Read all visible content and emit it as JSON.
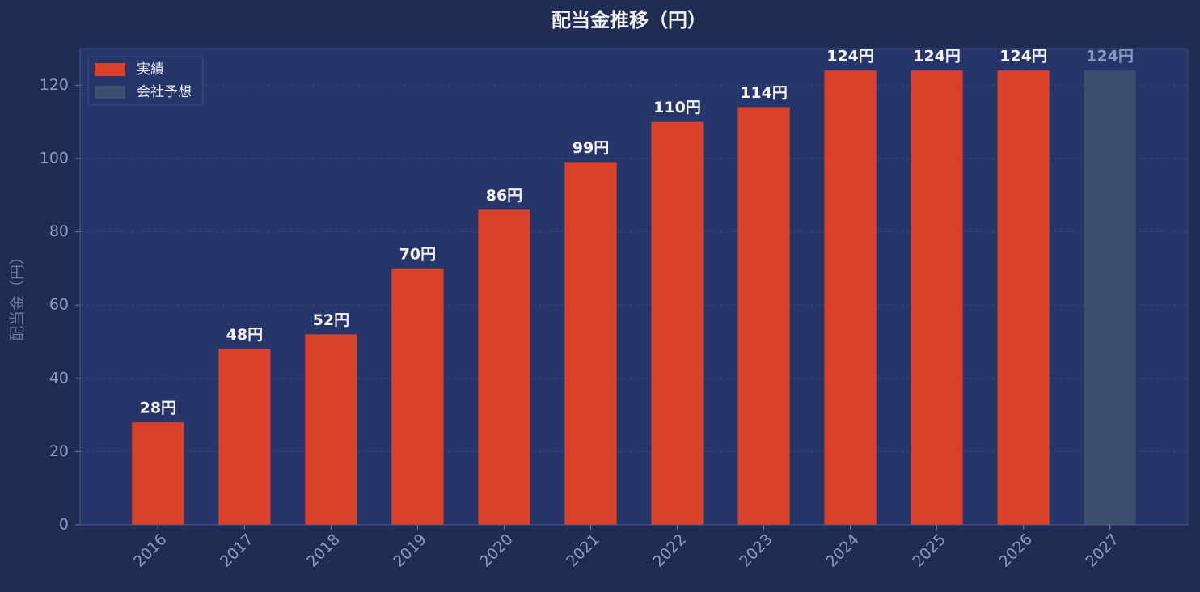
{
  "chart_data": {
    "type": "bar",
    "title": "配当金推移（円）",
    "y_label": "配当金（円）",
    "categories": [
      "2016",
      "2017",
      "2018",
      "2019",
      "2020",
      "2021",
      "2022",
      "2023",
      "2024",
      "2025",
      "2026",
      "2027"
    ],
    "series": [
      {
        "name": "実績",
        "color": "#d9412b",
        "label_color": "#f4f4f8",
        "values": [
          28,
          48,
          52,
          70,
          86,
          99,
          110,
          114,
          124,
          124,
          124,
          null
        ],
        "value_labels": [
          "28円",
          "48円",
          "52円",
          "70円",
          "86円",
          "99円",
          "110円",
          "114円",
          "124円",
          "124円",
          "124円",
          null
        ]
      },
      {
        "name": "会社予想",
        "color": "#3d4f6e",
        "label_color": "#8797bb",
        "values": [
          null,
          null,
          null,
          null,
          null,
          null,
          null,
          null,
          null,
          null,
          null,
          124
        ],
        "value_labels": [
          null,
          null,
          null,
          null,
          null,
          null,
          null,
          null,
          null,
          null,
          null,
          "124円"
        ]
      }
    ],
    "ylim": [
      0,
      130
    ],
    "yticks": [
      0,
      20,
      40,
      60,
      80,
      100,
      120
    ],
    "grid": true,
    "legend": "upper left"
  }
}
